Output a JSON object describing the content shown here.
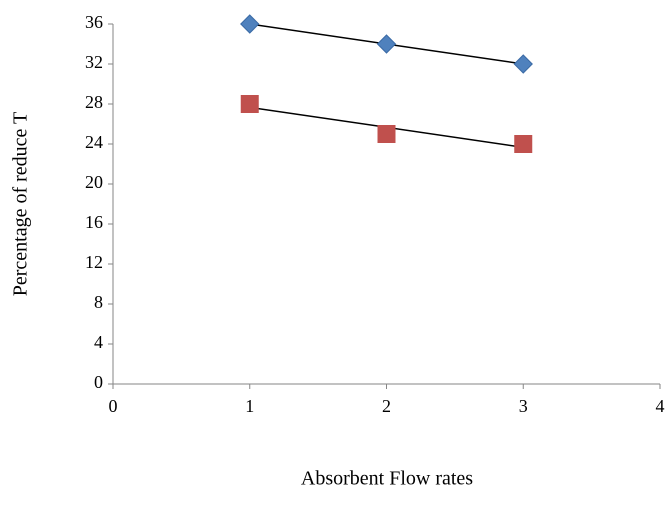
{
  "chart_data": {
    "type": "scatter",
    "x_label": "Absorbent Flow rates",
    "y_label": "Percentage of reduce T",
    "x": [
      1,
      2,
      3
    ],
    "series": [
      {
        "color": "#4f81bd",
        "marker": "diamond",
        "values": [
          36,
          34,
          32
        ]
      },
      {
        "color": "#c0504d",
        "marker": "square",
        "values": [
          28,
          25,
          24
        ]
      }
    ],
    "trendline": "linear",
    "xlim": [
      0,
      4
    ],
    "xticks": [
      0,
      1,
      2,
      3,
      4
    ],
    "ylim": [
      0,
      36
    ],
    "yticks": [
      0,
      4,
      8,
      12,
      16,
      20,
      24,
      28,
      32,
      36
    ],
    "grid": false
  }
}
